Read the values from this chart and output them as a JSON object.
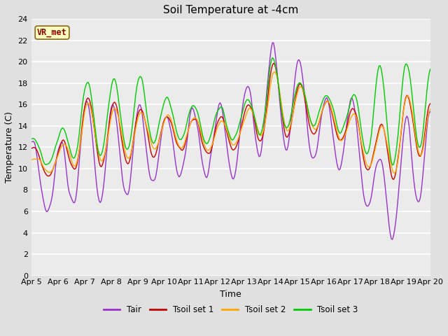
{
  "title": "Soil Temperature at -4cm",
  "xlabel": "Time",
  "ylabel": "Temperature (C)",
  "ylim": [
    0,
    24
  ],
  "yticks": [
    0,
    2,
    4,
    6,
    8,
    10,
    12,
    14,
    16,
    18,
    20,
    22,
    24
  ],
  "date_labels": [
    "Apr 5",
    "Apr 6",
    "Apr 7",
    "Apr 8",
    "Apr 9",
    "Apr 10",
    "Apr 11",
    "Apr 12",
    "Apr 13",
    "Apr 14",
    "Apr 15",
    "Apr 16",
    "Apr 17",
    "Apr 18",
    "Apr 19",
    "Apr 20"
  ],
  "annotation_text": "VR_met",
  "annotation_color": "#8B0000",
  "annotation_bg": "#FFFFC0",
  "color_tair": "#9932CC",
  "color_tsoil1": "#CC0000",
  "color_tsoil2": "#FFA500",
  "color_tsoil3": "#00CC00",
  "legend_labels": [
    "Tair",
    "Tsoil set 1",
    "Tsoil set 2",
    "Tsoil set 3"
  ],
  "bg_color": "#E0E0E0",
  "plot_bg_color": "#EBEBEB",
  "linewidth": 1.0
}
